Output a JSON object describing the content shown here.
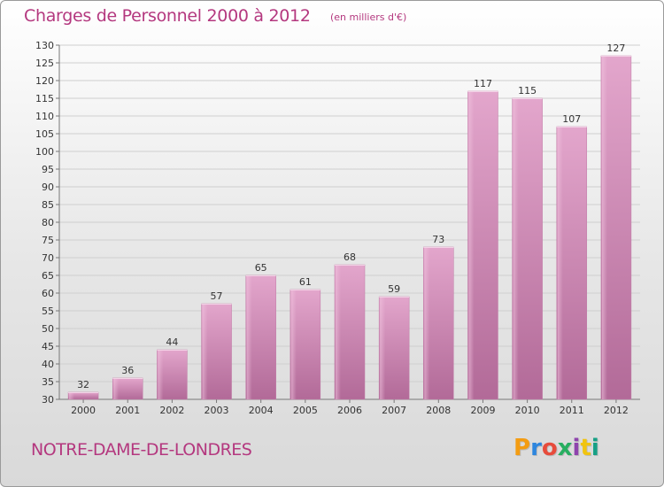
{
  "header": {
    "title": "Charges de Personnel 2000 à 2012",
    "subtitle": "(en milliers d'€)"
  },
  "footer": {
    "commune": "NOTRE-DAME-DE-LONDRES",
    "logo_text": "Proxiti",
    "logo_colors": [
      "#f39c12",
      "#2e86de",
      "#e74c3c",
      "#27ae60",
      "#8e44ad",
      "#f1c40f",
      "#16a085"
    ]
  },
  "chart_data": {
    "type": "bar",
    "categories": [
      "2000",
      "2001",
      "2002",
      "2003",
      "2004",
      "2005",
      "2006",
      "2007",
      "2008",
      "2009",
      "2010",
      "2011",
      "2012"
    ],
    "values": [
      32,
      36,
      44,
      57,
      65,
      61,
      68,
      59,
      73,
      117,
      115,
      107,
      127
    ],
    "ylim": [
      30,
      130
    ],
    "yticks": [
      30,
      35,
      40,
      45,
      50,
      55,
      60,
      65,
      70,
      75,
      80,
      85,
      90,
      95,
      100,
      105,
      110,
      115,
      120,
      125,
      130
    ],
    "grid": true,
    "bar_color": "#d98bbb"
  }
}
